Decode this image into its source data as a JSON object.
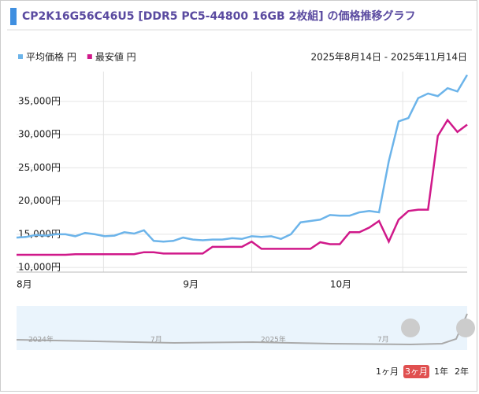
{
  "chart_data": {
    "type": "line",
    "title": "CP2K16G56C46U5 [DDR5 PC5-44800 16GB 2枚組] の価格推移グラフ",
    "date_range": "2025年8月14日 - 2025年11月14日",
    "categories": [
      "8月",
      null,
      null,
      null,
      null,
      null,
      null,
      null,
      null,
      null,
      null,
      null,
      null,
      null,
      null,
      null,
      null,
      "9月",
      null,
      null,
      null,
      null,
      null,
      null,
      null,
      null,
      null,
      null,
      null,
      null,
      null,
      null,
      "10月",
      null,
      null,
      null,
      null,
      null,
      null,
      null,
      null,
      null,
      null,
      null,
      null,
      null,
      null
    ],
    "series": [
      {
        "name": "平均価格 円",
        "color": "#6cb4ea",
        "values": [
          14500,
          14600,
          14900,
          14800,
          15000,
          15000,
          14700,
          15200,
          15000,
          14700,
          14800,
          15300,
          15100,
          15600,
          14000,
          13900,
          14000,
          14500,
          14200,
          14100,
          14200,
          14200,
          14400,
          14300,
          14700,
          14600,
          14700,
          14300,
          15000,
          16800,
          17000,
          17200,
          17900,
          17800,
          17800,
          18300,
          18500,
          18300,
          26000,
          32000,
          32500,
          35500,
          36200,
          35800,
          37000,
          36500,
          39000
        ]
      },
      {
        "name": "最安値 円",
        "color": "#d0198a",
        "values": [
          11900,
          11900,
          11900,
          11900,
          11900,
          11900,
          12000,
          12000,
          12000,
          12000,
          12000,
          12000,
          12000,
          12300,
          12300,
          12100,
          12100,
          12100,
          12100,
          12100,
          13100,
          13100,
          13100,
          13100,
          13900,
          12800,
          12800,
          12800,
          12800,
          12800,
          12800,
          13800,
          13500,
          13500,
          15300,
          15300,
          16000,
          17000,
          13900,
          17200,
          18500,
          18700,
          18700,
          29800,
          32200,
          30400,
          31500
        ]
      }
    ],
    "ylim": [
      9300,
      39500
    ],
    "yticks": [
      {
        "value": 10000,
        "label": "10,000円"
      },
      {
        "value": 15000,
        "label": "15,000円"
      },
      {
        "value": 20000,
        "label": "20,000円"
      },
      {
        "value": 25000,
        "label": "25,000円"
      },
      {
        "value": 30000,
        "label": "30,000円"
      },
      {
        "value": 35000,
        "label": "35,000円"
      }
    ],
    "grid": true
  },
  "navigator": {
    "labels": [
      "2024年",
      "7月",
      "2025年",
      "7月"
    ]
  },
  "buttons": [
    "1ヶ月",
    "3ヶ月",
    "1年",
    "2年"
  ]
}
